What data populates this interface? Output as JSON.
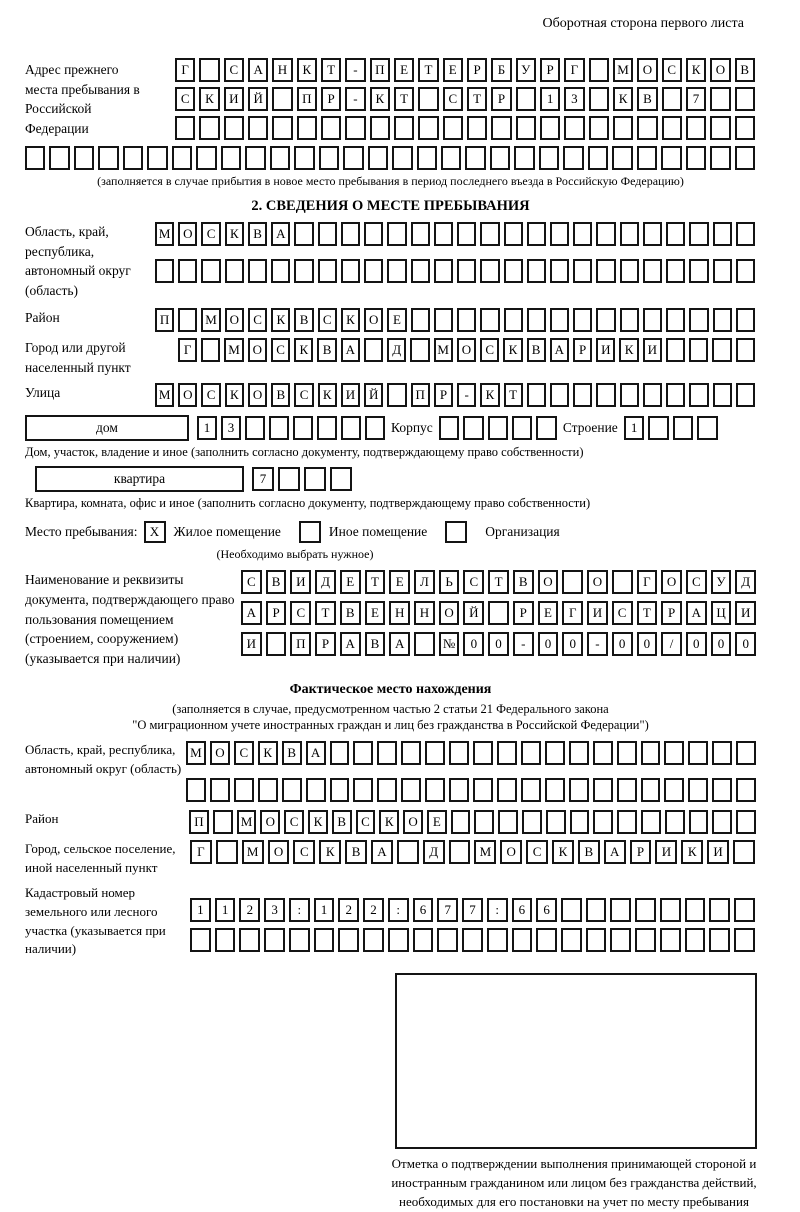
{
  "page_header": "Оборотная сторона первого листа",
  "prev_address": {
    "label": "Адрес прежнего места пребывания в Российской Федерации",
    "rows": [
      {
        "value": "Г САНКТ-ПЕТЕРБУРГ МОСКОВ",
        "cells": 24
      },
      {
        "value": "СКИЙ ПР-КТ СТР 13 КВ 7",
        "cells": 24
      },
      {
        "value": "",
        "cells": 24
      }
    ],
    "full_row": {
      "value": "",
      "cells": 30
    },
    "note": "(заполняется в случае прибытия в новое место пребывания в период последнего въезда в Российскую Федерацию)"
  },
  "section2": {
    "title": "2. СВЕДЕНИЯ О МЕСТЕ ПРЕБЫВАНИЯ",
    "region": {
      "label": "Область, край, республика, автономный округ (область)",
      "rows": [
        {
          "value": "МОСКВА",
          "cells": 26
        },
        {
          "value": "",
          "cells": 26
        }
      ]
    },
    "district": {
      "label": "Район",
      "rows": [
        {
          "value": "П МОСКВСКОЕ",
          "cells": 26
        }
      ]
    },
    "city": {
      "label": "Город или другой населенный пункт",
      "rows": [
        {
          "value": "Г МОСКВА Д МОСКВАРИКИ",
          "cells": 25
        }
      ]
    },
    "street": {
      "label": "Улица",
      "rows": [
        {
          "value": "МОСКОВСКИЙ ПР-КТ",
          "cells": 26
        }
      ]
    },
    "house": {
      "box_label": "дом",
      "house_row": {
        "value": "13",
        "cells": 8
      },
      "korpus_label": "Корпус",
      "korpus_row": {
        "value": "",
        "cells": 5
      },
      "stroenie_label": "Строение",
      "stroenie_row": {
        "value": "1",
        "cells": 4
      },
      "note": "Дом, участок, владение и иное (заполнить согласно документу, подтверждающему право собственности)"
    },
    "apartment": {
      "box_label": "квартира",
      "row": {
        "value": "7",
        "cells": 4
      },
      "note": "Квартира, комната, офис и иное (заполнить согласно документу, подтверждающему право собственности)"
    },
    "place_type": {
      "label": "Место пребывания:",
      "options": [
        {
          "label": "Жилое помещение",
          "checked": "X"
        },
        {
          "label": "Иное помещение",
          "checked": ""
        },
        {
          "label": "Организация",
          "checked": ""
        }
      ],
      "note": "(Необходимо выбрать нужное)"
    },
    "document": {
      "label": "Наименование и реквизиты документа, подтверждающего право пользования помещением (строением, сооружением) (указывается при наличии)",
      "rows": [
        {
          "value": "СВИДЕТЕЛЬСТВО О ГОСУД",
          "cells": 21
        },
        {
          "value": "АРСТВЕННОЙ РЕГИСТРАЦИ",
          "cells": 21
        },
        {
          "value": "И ПРАВА №00-00-00/000",
          "cells": 21
        }
      ]
    }
  },
  "actual_location": {
    "title": "Фактическое место нахождения",
    "note_line1": "(заполняется в случае, предусмотренном частью 2 статьи 21 Федерального закона",
    "note_line2": "\"О миграционном учете иностранных граждан и лиц без гражданства в Российской Федерации\")",
    "region": {
      "label": "Область, край, республика, автономный округ (область)",
      "rows": [
        {
          "value": "МОСКВА",
          "cells": 24
        },
        {
          "value": "",
          "cells": 24
        }
      ]
    },
    "district": {
      "label": "Район",
      "rows": [
        {
          "value": "П МОСКВСКОЕ",
          "cells": 24
        }
      ]
    },
    "city": {
      "label": "Город, сельское поселение, иной населенный пункт",
      "rows": [
        {
          "value": "Г МОСКВА Д МОСКВАРИКИ",
          "cells": 22
        }
      ]
    },
    "cadastral": {
      "label": "Кадастровый номер земельного или лесного участка (указывается при наличии)",
      "rows": [
        {
          "value": "1123:122:677:66",
          "cells": 23
        },
        {
          "value": "",
          "cells": 23
        }
      ]
    }
  },
  "stamp": {
    "caption": "Отметка о подтверждении выполнения принимающей стороной и иностранным гражданином или лицом без гражданства действий, необходимых для его постановки на учет по месту пребывания"
  }
}
